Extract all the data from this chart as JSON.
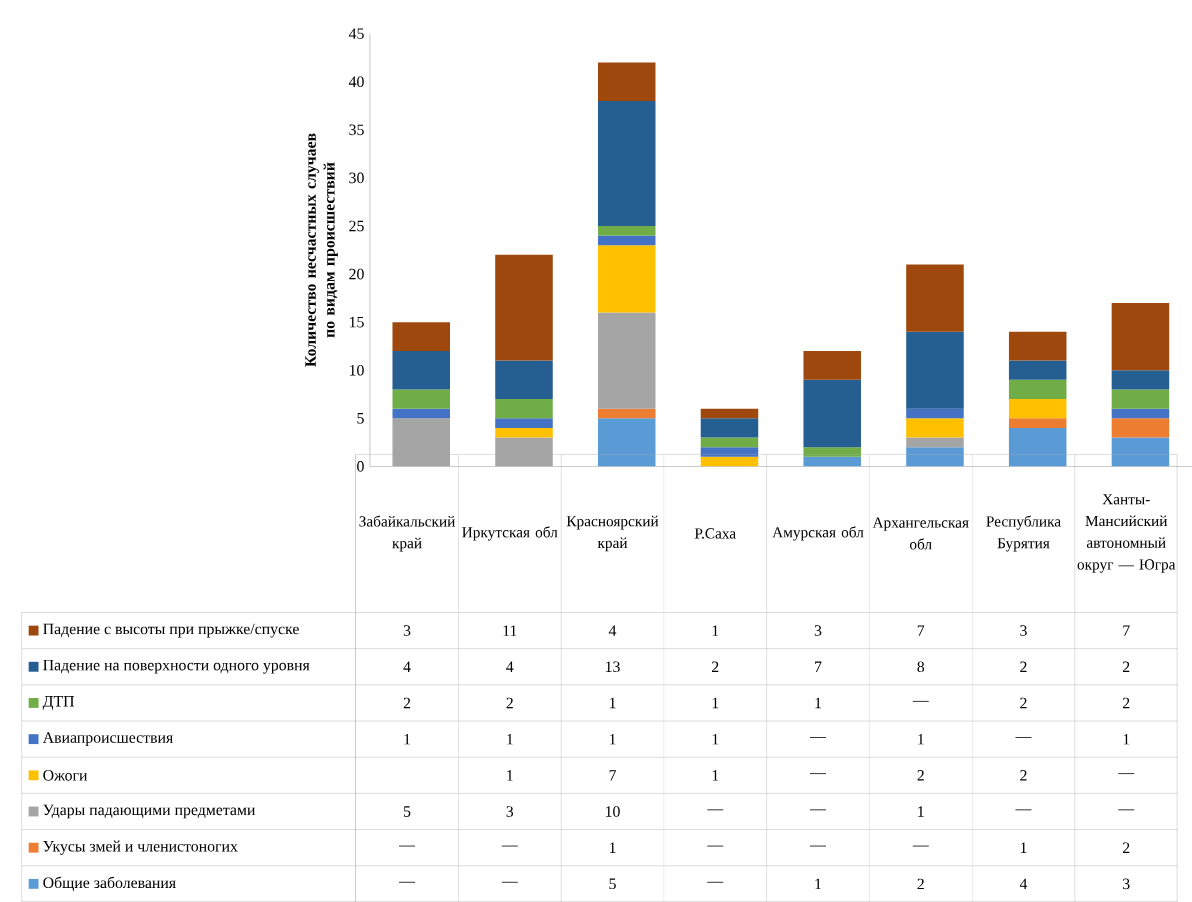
{
  "chart_data": {
    "type": "bar",
    "stacked": true,
    "legend": "bottom",
    "ylabel": "Количество несчастных случаев по видам происшествий",
    "categories": [
      "Забайкальский край",
      "Иркутская обл",
      "Красноярский край",
      "Р.Саха",
      "Амурская обл",
      "Архангельская обл",
      "Республика Бурятия",
      "Ханты-Мансийский автономный округ — Югра"
    ],
    "ylim": [
      0,
      45
    ],
    "yticks": [
      0,
      5,
      10,
      15,
      20,
      25,
      30,
      35,
      40,
      45
    ],
    "series": [
      {
        "name": "Общие заболевания",
        "color": "#5b9bd5",
        "values": [
          null,
          null,
          5,
          null,
          1,
          2,
          4,
          3
        ],
        "value_labels": [
          "—",
          "—",
          "5",
          "—",
          "1",
          "2",
          "4",
          "3"
        ]
      },
      {
        "name": "Укусы змей и членистоногих",
        "color": "#ed7d31",
        "values": [
          null,
          null,
          1,
          null,
          null,
          null,
          1,
          2
        ],
        "value_labels": [
          "—",
          "—",
          "1",
          "—",
          "—",
          "—",
          "1",
          "2"
        ]
      },
      {
        "name": "Удары падающими предметами",
        "color": "#a5a5a5",
        "values": [
          5,
          3,
          10,
          null,
          null,
          1,
          null,
          null
        ],
        "value_labels": [
          "5",
          "3",
          "10",
          "—",
          "—",
          "1",
          "—",
          "—"
        ]
      },
      {
        "name": "Ожоги",
        "color": "#ffc000",
        "values": [
          null,
          1,
          7,
          1,
          null,
          2,
          2,
          null
        ],
        "value_labels": [
          null,
          "1",
          "7",
          "1",
          "—",
          "2",
          "2",
          "—"
        ]
      },
      {
        "name": "Авиапроисшествия",
        "color": "#4472c4",
        "values": [
          1,
          1,
          1,
          1,
          null,
          1,
          null,
          1
        ],
        "value_labels": [
          "1",
          "1",
          "1",
          "1",
          "—",
          "1",
          "—",
          "1"
        ]
      },
      {
        "name": "ДТП",
        "color": "#70ad47",
        "values": [
          2,
          2,
          1,
          1,
          1,
          null,
          2,
          2
        ],
        "value_labels": [
          "2",
          "2",
          "1",
          "1",
          "1",
          "—",
          "2",
          "2"
        ]
      },
      {
        "name": "Падение на поверхности одного уровня",
        "color": "#255e91",
        "values": [
          4,
          4,
          13,
          2,
          7,
          8,
          2,
          2
        ],
        "value_labels": [
          "4",
          "4",
          "13",
          "2",
          "7",
          "8",
          "2",
          "2"
        ]
      },
      {
        "name": "Падение с высоты при прыжке/спуске",
        "color": "#9e480e",
        "values": [
          3,
          11,
          4,
          1,
          3,
          7,
          3,
          7
        ],
        "value_labels": [
          "3",
          "11",
          "4",
          "1",
          "3",
          "7",
          "3",
          "7"
        ]
      }
    ]
  }
}
